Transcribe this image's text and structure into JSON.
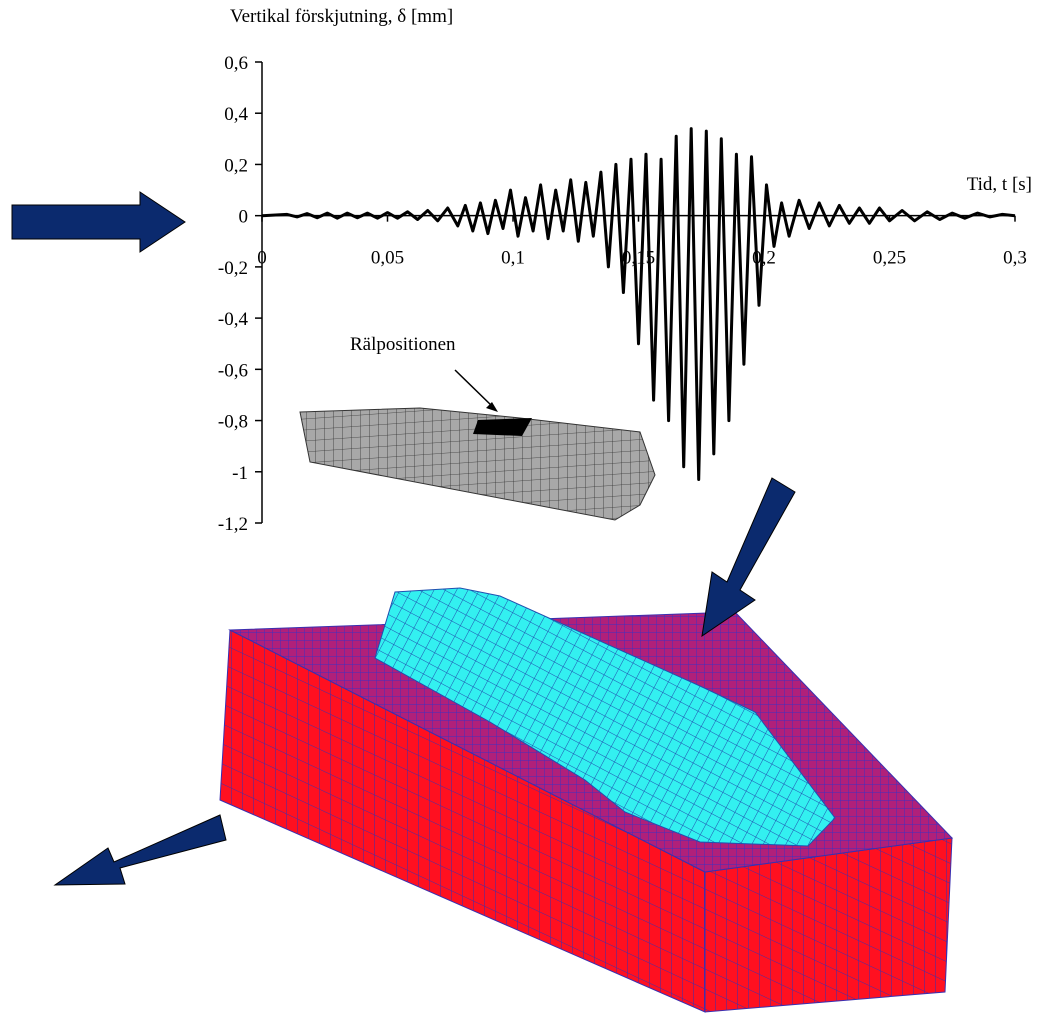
{
  "chart_data": {
    "type": "line",
    "title": "Vertikal förskjutning, δ [mm]",
    "xlabel": "Tid, t [s]",
    "annotation": "Rälpositionen",
    "color": "#000000",
    "xlim": [
      0,
      0.3
    ],
    "ylim": [
      -1.2,
      0.6
    ],
    "xticks": [
      0,
      {
        "value": 0.05,
        "label": "0,05"
      },
      {
        "value": 0.1,
        "label": "0,1"
      },
      {
        "value": 0.15,
        "label": "0,15"
      },
      {
        "value": 0.2,
        "label": "0,2"
      },
      {
        "value": 0.25,
        "label": "0,25"
      },
      {
        "value": 0.3,
        "label": "0,3"
      }
    ],
    "yticks": [
      {
        "value": 0.6,
        "label": "0,6"
      },
      {
        "value": 0.4,
        "label": "0,4"
      },
      {
        "value": 0.2,
        "label": "0,2"
      },
      0,
      {
        "value": -0.2,
        "label": "-0,2"
      },
      {
        "value": -0.4,
        "label": "-0,4"
      },
      {
        "value": -0.6,
        "label": "-0,6"
      },
      {
        "value": -0.8,
        "label": "-0,8"
      },
      {
        "value": -1,
        "label": "-1"
      },
      {
        "value": -1.2,
        "label": "-1,2"
      }
    ],
    "x": [
      0,
      0.01,
      0.014,
      0.018,
      0.022,
      0.026,
      0.03,
      0.034,
      0.038,
      0.042,
      0.046,
      0.05,
      0.054,
      0.058,
      0.062,
      0.066,
      0.07,
      0.074,
      0.078,
      0.081,
      0.084,
      0.087,
      0.09,
      0.093,
      0.096,
      0.099,
      0.102,
      0.105,
      0.108,
      0.111,
      0.114,
      0.117,
      0.12,
      0.123,
      0.126,
      0.129,
      0.132,
      0.135,
      0.138,
      0.141,
      0.144,
      0.147,
      0.15,
      0.153,
      0.156,
      0.159,
      0.162,
      0.165,
      0.168,
      0.171,
      0.174,
      0.177,
      0.18,
      0.183,
      0.186,
      0.189,
      0.192,
      0.195,
      0.198,
      0.201,
      0.204,
      0.207,
      0.21,
      0.214,
      0.218,
      0.222,
      0.226,
      0.23,
      0.234,
      0.238,
      0.242,
      0.246,
      0.25,
      0.255,
      0.26,
      0.265,
      0.27,
      0.275,
      0.28,
      0.285,
      0.29,
      0.295,
      0.3
    ],
    "values": [
      0,
      0.005,
      -0.005,
      0.008,
      -0.008,
      0.01,
      -0.01,
      0.01,
      -0.008,
      0.01,
      -0.01,
      0.012,
      -0.01,
      0.015,
      -0.015,
      0.02,
      -0.02,
      0.03,
      -0.04,
      0.04,
      -0.06,
      0.05,
      -0.07,
      0.06,
      -0.05,
      0.1,
      -0.08,
      0.07,
      -0.06,
      0.12,
      -0.09,
      0.1,
      -0.06,
      0.14,
      -0.1,
      0.13,
      -0.08,
      0.17,
      -0.2,
      0.2,
      -0.3,
      0.22,
      -0.5,
      0.24,
      -0.72,
      0.22,
      -0.8,
      0.31,
      -0.98,
      0.34,
      -1.03,
      0.33,
      -0.93,
      0.3,
      -0.8,
      0.24,
      -0.58,
      0.23,
      -0.35,
      0.12,
      -0.12,
      0.05,
      -0.08,
      0.06,
      -0.05,
      0.05,
      -0.04,
      0.04,
      -0.03,
      0.03,
      -0.03,
      0.03,
      -0.02,
      0.02,
      -0.02,
      0.015,
      -0.015,
      0.01,
      -0.01,
      0.01,
      -0.005,
      0.005,
      0
    ]
  }
}
